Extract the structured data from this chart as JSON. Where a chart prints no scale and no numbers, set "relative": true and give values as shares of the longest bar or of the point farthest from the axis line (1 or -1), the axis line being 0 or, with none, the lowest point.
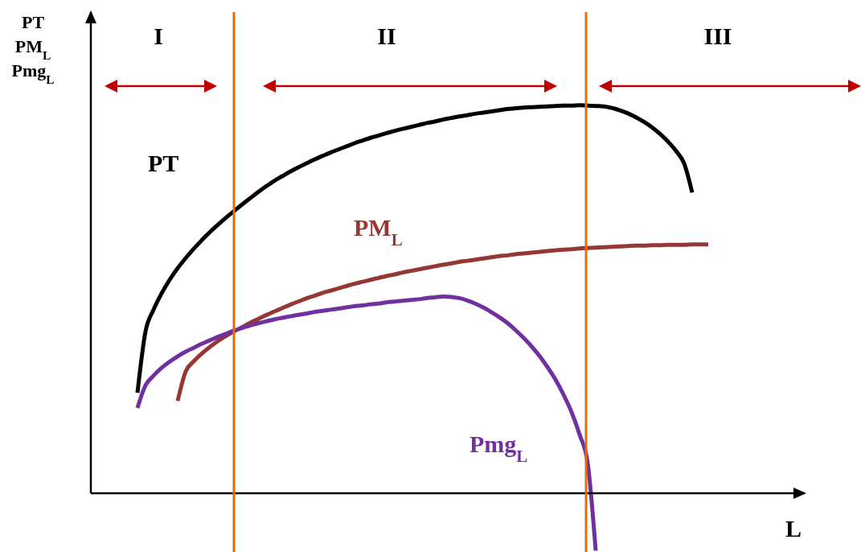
{
  "chart_data": {
    "type": "line",
    "relative": true,
    "xlabel": "L",
    "ylabel": "PT\nPM$_{L}$\nPmg$_{L}$",
    "annotations": [
      "I",
      "II",
      "III"
    ],
    "categories": [
      null,
      null,
      null,
      null,
      null,
      null,
      null,
      null,
      null,
      null,
      null,
      null,
      null,
      null,
      null,
      null,
      null,
      null,
      null,
      null,
      null,
      null,
      null,
      null,
      null,
      null,
      null,
      null,
      null,
      null,
      null,
      null,
      null,
      null,
      null,
      null,
      null,
      null,
      null,
      null,
      null,
      null,
      null,
      null,
      null,
      null,
      null,
      null,
      null,
      null,
      null,
      null,
      null,
      null,
      null,
      null,
      null,
      null,
      null,
      null,
      null,
      null,
      null,
      null,
      null,
      null,
      null,
      null,
      null,
      null,
      null,
      null,
      null,
      null,
      null,
      null,
      null,
      null,
      null,
      null,
      null,
      null,
      null,
      null,
      null,
      null,
      null,
      null
    ],
    "series": [
      {
        "name": "PT",
        "color": "#000000",
        "values": [
          null,
          null,
          null,
          null,
          null,
          0.259,
          0.417,
          0.473,
          0.515,
          0.55,
          0.58,
          0.606,
          0.63,
          0.652,
          0.673,
          0.692,
          0.71,
          0.727,
          0.744,
          0.76,
          0.776,
          0.791,
          0.805,
          0.817,
          0.829,
          0.84,
          0.85,
          0.86,
          0.869,
          0.878,
          0.886,
          0.894,
          0.902,
          0.909,
          0.916,
          0.922,
          0.928,
          0.934,
          0.939,
          0.944,
          0.949,
          0.954,
          0.958,
          0.963,
          0.967,
          0.971,
          0.974,
          0.978,
          0.981,
          0.984,
          0.987,
          0.99,
          0.992,
          0.994,
          0.995,
          0.996,
          0.997,
          0.998,
          0.999,
          0.999,
          1,
          0.999,
          0.998,
          0.997,
          0.993,
          0.987,
          0.979,
          0.969,
          0.957,
          0.943,
          0.926,
          0.906,
          0.882,
          0.85,
          0.775,
          null,
          null,
          null,
          null,
          null,
          null,
          null,
          null,
          null,
          null,
          null,
          null,
          null
        ]
      },
      {
        "name": "PM$_{L}$",
        "color": "#953735",
        "values": [
          null,
          null,
          null,
          null,
          null,
          null,
          null,
          null,
          null,
          null,
          0.238,
          0.314,
          0.34,
          0.36,
          0.377,
          0.392,
          0.405,
          0.417,
          0.428,
          0.439,
          0.449,
          0.459,
          0.468,
          0.477,
          0.486,
          0.494,
          0.502,
          0.509,
          0.516,
          0.522,
          0.528,
          0.534,
          0.54,
          0.545,
          0.55,
          0.555,
          0.56,
          0.564,
          0.569,
          0.573,
          0.577,
          0.581,
          0.585,
          0.589,
          0.592,
          0.596,
          0.599,
          0.602,
          0.605,
          0.608,
          0.611,
          0.613,
          0.616,
          0.618,
          0.62,
          0.622,
          0.624,
          0.626,
          0.628,
          0.629,
          0.631,
          0.632,
          0.633,
          0.634,
          0.635,
          0.636,
          0.637,
          0.638,
          0.638,
          0.639,
          0.639,
          0.64,
          0.64,
          0.64,
          0.641,
          0.641,
          0.641,
          null,
          null,
          null,
          null,
          null,
          null,
          null,
          null,
          null,
          null,
          null
        ]
      },
      {
        "name": "Pmg$_{L}$",
        "color": "#7030a0",
        "values": [
          null,
          null,
          null,
          null,
          null,
          0.22,
          0.278,
          0.303,
          0.323,
          0.339,
          0.353,
          0.365,
          0.375,
          0.385,
          0.394,
          0.403,
          0.411,
          0.419,
          0.426,
          0.432,
          0.438,
          0.443,
          0.448,
          0.452,
          0.456,
          0.46,
          0.463,
          0.467,
          0.47,
          0.473,
          0.476,
          0.479,
          0.482,
          0.484,
          0.487,
          0.489,
          0.492,
          0.494,
          0.496,
          0.498,
          0.5,
          0.503,
          0.505,
          0.507,
          0.506,
          0.503,
          0.497,
          0.489,
          0.479,
          0.467,
          0.454,
          0.439,
          0.421,
          0.401,
          0.379,
          0.354,
          0.325,
          0.293,
          0.254,
          0.209,
          0.151,
          0.078,
          -0.148,
          null,
          null,
          null,
          null,
          null,
          null,
          null,
          null,
          null,
          null,
          null,
          null,
          null,
          null,
          null,
          null,
          null,
          null,
          null,
          null,
          null,
          null,
          null,
          null,
          null
        ]
      }
    ],
    "marker": "none",
    "line_style": "solid"
  }
}
